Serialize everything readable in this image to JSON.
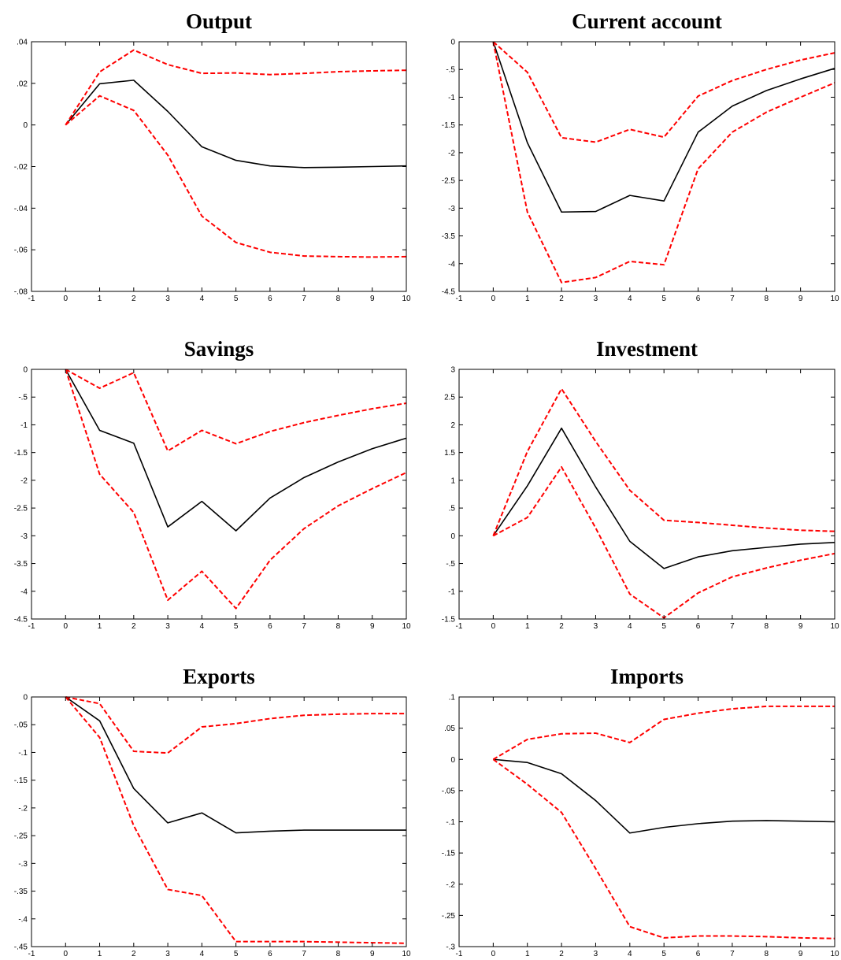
{
  "chart_data": [
    {
      "type": "line",
      "title": "Output",
      "xlim": [
        -1,
        10
      ],
      "ylim": [
        -0.08,
        0.04
      ],
      "xticks": [
        -1,
        0,
        1,
        2,
        3,
        4,
        5,
        6,
        7,
        8,
        9,
        10
      ],
      "yticks": [
        -0.08,
        -0.06,
        -0.04,
        -0.02,
        0,
        0.02,
        0.04
      ],
      "x": [
        0,
        1,
        2,
        3,
        4,
        5,
        6,
        7,
        8,
        9,
        10
      ],
      "series": [
        {
          "values": [
            0,
            0.0198,
            0.0215,
            0.0065,
            -0.0105,
            -0.017,
            -0.0197,
            -0.0205,
            -0.0203,
            -0.02,
            -0.0197
          ],
          "color": "#000000",
          "style": "solid"
        },
        {
          "values": [
            0,
            0.0255,
            0.036,
            0.029,
            0.0248,
            0.025,
            0.0242,
            0.0248,
            0.0256,
            0.026,
            0.0263
          ],
          "color": "#ff0000",
          "style": "dashed"
        },
        {
          "values": [
            0,
            0.014,
            0.007,
            -0.0145,
            -0.0438,
            -0.0565,
            -0.0612,
            -0.063,
            -0.0633,
            -0.0635,
            -0.0633
          ],
          "color": "#ff0000",
          "style": "dashed"
        }
      ]
    },
    {
      "type": "line",
      "title": "Current account",
      "xlim": [
        -1,
        10
      ],
      "ylim": [
        -4.5,
        0
      ],
      "xticks": [
        -1,
        0,
        1,
        2,
        3,
        4,
        5,
        6,
        7,
        8,
        9,
        10
      ],
      "yticks": [
        -4.5,
        -4,
        -3.5,
        -3,
        -2.5,
        -2,
        -1.5,
        -1,
        -0.5,
        0
      ],
      "x": [
        0,
        1,
        2,
        3,
        4,
        5,
        6,
        7,
        8,
        9,
        10
      ],
      "series": [
        {
          "values": [
            0,
            -1.82,
            -3.07,
            -3.06,
            -2.77,
            -2.87,
            -1.63,
            -1.16,
            -0.88,
            -0.67,
            -0.48
          ],
          "color": "#000000",
          "style": "solid"
        },
        {
          "values": [
            0,
            -0.55,
            -1.73,
            -1.81,
            -1.58,
            -1.72,
            -0.98,
            -0.7,
            -0.5,
            -0.33,
            -0.2
          ],
          "color": "#ff0000",
          "style": "dashed"
        },
        {
          "values": [
            0,
            -3.07,
            -4.34,
            -4.25,
            -3.96,
            -4.02,
            -2.29,
            -1.63,
            -1.27,
            -1.0,
            -0.74
          ],
          "color": "#ff0000",
          "style": "dashed"
        }
      ]
    },
    {
      "type": "line",
      "title": "Savings",
      "xlim": [
        -1,
        10
      ],
      "ylim": [
        -4.5,
        0
      ],
      "xticks": [
        -1,
        0,
        1,
        2,
        3,
        4,
        5,
        6,
        7,
        8,
        9,
        10
      ],
      "yticks": [
        -4.5,
        -4,
        -3.5,
        -3,
        -2.5,
        -2,
        -1.5,
        -1,
        -0.5,
        0
      ],
      "x": [
        0,
        1,
        2,
        3,
        4,
        5,
        6,
        7,
        8,
        9,
        10
      ],
      "series": [
        {
          "values": [
            0,
            -1.1,
            -1.33,
            -2.84,
            -2.38,
            -2.91,
            -2.32,
            -1.95,
            -1.67,
            -1.43,
            -1.24
          ],
          "color": "#000000",
          "style": "solid"
        },
        {
          "values": [
            0,
            -0.34,
            -0.06,
            -1.47,
            -1.1,
            -1.34,
            -1.12,
            -0.96,
            -0.83,
            -0.71,
            -0.61
          ],
          "color": "#ff0000",
          "style": "dashed"
        },
        {
          "values": [
            0,
            -1.89,
            -2.58,
            -4.16,
            -3.64,
            -4.31,
            -3.44,
            -2.87,
            -2.46,
            -2.15,
            -1.86
          ],
          "color": "#ff0000",
          "style": "dashed"
        }
      ]
    },
    {
      "type": "line",
      "title": "Investment",
      "xlim": [
        -1,
        10
      ],
      "ylim": [
        -1.5,
        3
      ],
      "xticks": [
        -1,
        0,
        1,
        2,
        3,
        4,
        5,
        6,
        7,
        8,
        9,
        10
      ],
      "yticks": [
        -1.5,
        -1,
        -0.5,
        0,
        0.5,
        1,
        1.5,
        2,
        2.5,
        3
      ],
      "x": [
        0,
        1,
        2,
        3,
        4,
        5,
        6,
        7,
        8,
        9,
        10
      ],
      "series": [
        {
          "values": [
            0,
            0.9,
            1.94,
            0.88,
            -0.1,
            -0.59,
            -0.38,
            -0.27,
            -0.21,
            -0.15,
            -0.12
          ],
          "color": "#000000",
          "style": "solid"
        },
        {
          "values": [
            0,
            1.52,
            2.65,
            1.7,
            0.82,
            0.28,
            0.24,
            0.19,
            0.14,
            0.1,
            0.08
          ],
          "color": "#ff0000",
          "style": "dashed"
        },
        {
          "values": [
            0,
            0.33,
            1.24,
            0.14,
            -1.05,
            -1.48,
            -1.03,
            -0.74,
            -0.58,
            -0.44,
            -0.32
          ],
          "color": "#ff0000",
          "style": "dashed"
        }
      ]
    },
    {
      "type": "line",
      "title": "Exports",
      "xlim": [
        -1,
        10
      ],
      "ylim": [
        -0.45,
        0
      ],
      "xticks": [
        -1,
        0,
        1,
        2,
        3,
        4,
        5,
        6,
        7,
        8,
        9,
        10
      ],
      "yticks": [
        -0.45,
        -0.4,
        -0.35,
        -0.3,
        -0.25,
        -0.2,
        -0.15,
        -0.1,
        -0.05,
        0
      ],
      "x": [
        0,
        1,
        2,
        3,
        4,
        5,
        6,
        7,
        8,
        9,
        10
      ],
      "series": [
        {
          "values": [
            0,
            -0.043,
            -0.165,
            -0.227,
            -0.209,
            -0.245,
            -0.242,
            -0.24,
            -0.24,
            -0.24,
            -0.24
          ],
          "color": "#000000",
          "style": "solid"
        },
        {
          "values": [
            0,
            -0.012,
            -0.098,
            -0.101,
            -0.054,
            -0.048,
            -0.039,
            -0.033,
            -0.031,
            -0.03,
            -0.03
          ],
          "color": "#ff0000",
          "style": "dashed"
        },
        {
          "values": [
            0,
            -0.073,
            -0.232,
            -0.347,
            -0.358,
            -0.441,
            -0.441,
            -0.441,
            -0.442,
            -0.443,
            -0.444
          ],
          "color": "#ff0000",
          "style": "dashed"
        }
      ]
    },
    {
      "type": "line",
      "title": "Imports",
      "xlim": [
        -1,
        10
      ],
      "ylim": [
        -0.3,
        0.1
      ],
      "xticks": [
        -1,
        0,
        1,
        2,
        3,
        4,
        5,
        6,
        7,
        8,
        9,
        10
      ],
      "yticks": [
        -0.3,
        -0.25,
        -0.2,
        -0.15,
        -0.1,
        -0.05,
        0,
        0.05,
        0.1
      ],
      "x": [
        0,
        1,
        2,
        3,
        4,
        5,
        6,
        7,
        8,
        9,
        10
      ],
      "series": [
        {
          "values": [
            0,
            -0.005,
            -0.023,
            -0.066,
            -0.118,
            -0.109,
            -0.103,
            -0.099,
            -0.098,
            -0.099,
            -0.1
          ],
          "color": "#000000",
          "style": "solid"
        },
        {
          "values": [
            0,
            0.032,
            0.041,
            0.042,
            0.027,
            0.064,
            0.074,
            0.081,
            0.085,
            0.085,
            0.085
          ],
          "color": "#ff0000",
          "style": "dashed"
        },
        {
          "values": [
            0,
            -0.04,
            -0.085,
            -0.175,
            -0.268,
            -0.286,
            -0.283,
            -0.283,
            -0.284,
            -0.286,
            -0.287
          ],
          "color": "#ff0000",
          "style": "dashed"
        }
      ]
    }
  ]
}
